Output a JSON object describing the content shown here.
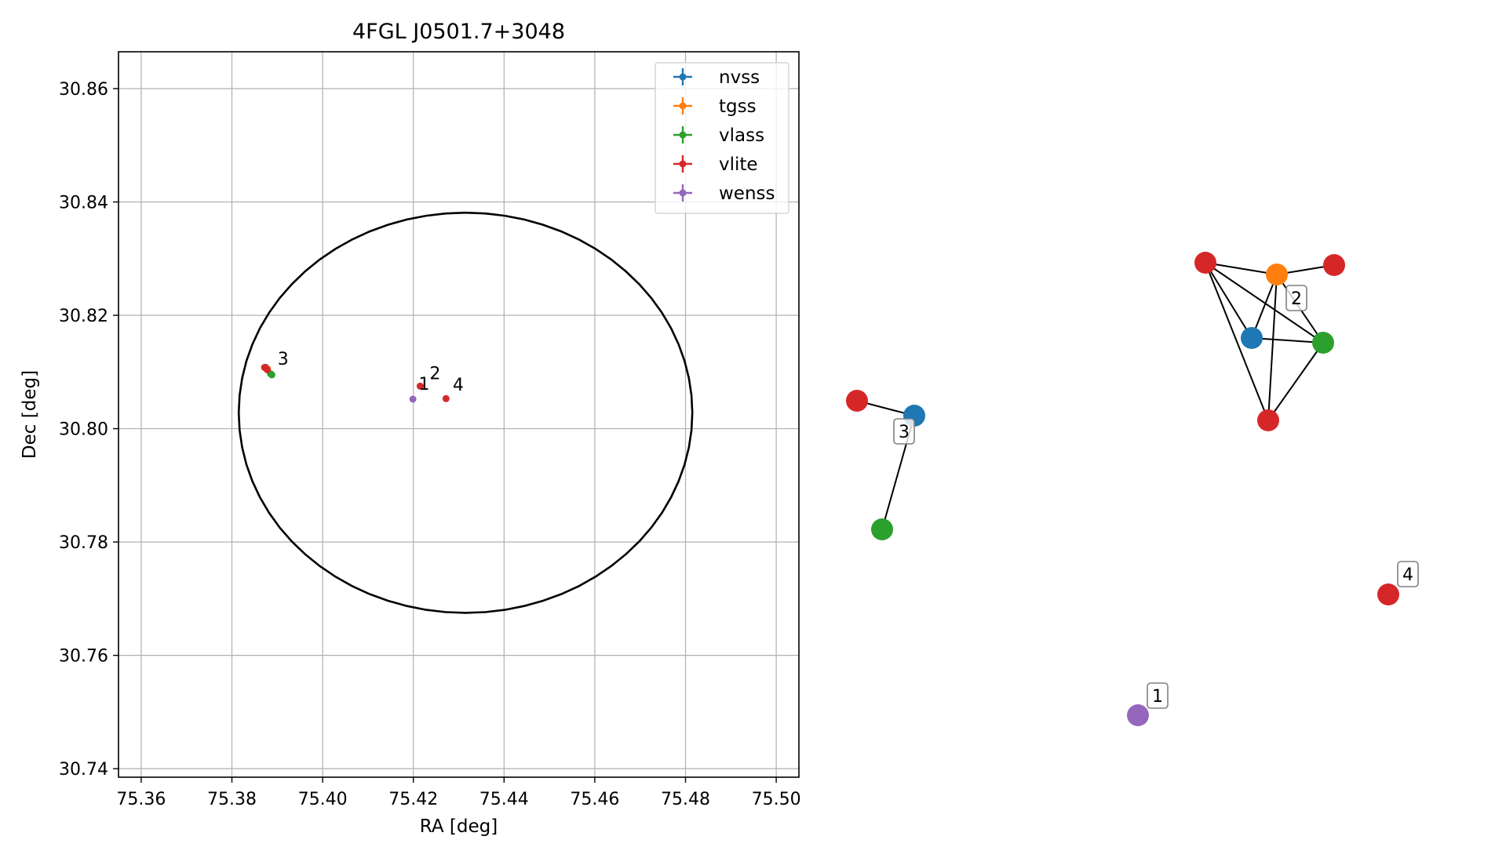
{
  "chart_data": [
    {
      "type": "scatter",
      "title": "4FGL J0501.7+3048",
      "xlabel": "RA [deg]",
      "ylabel": "Dec [deg]",
      "xlim": [
        75.355,
        75.505
      ],
      "ylim": [
        30.7385,
        30.8665
      ],
      "xticks": [
        75.36,
        75.38,
        75.4,
        75.42,
        75.44,
        75.46,
        75.48,
        75.5
      ],
      "xtick_labels": [
        "75.36",
        "75.38",
        "75.40",
        "75.42",
        "75.44",
        "75.46",
        "75.48",
        "75.50"
      ],
      "yticks": [
        30.74,
        30.76,
        30.78,
        30.8,
        30.82,
        30.84,
        30.86
      ],
      "ytick_labels": [
        "30.74",
        "30.76",
        "30.78",
        "30.80",
        "30.82",
        "30.84",
        "30.86"
      ],
      "grid": true,
      "legend_position": "top-right",
      "series": [
        {
          "name": "nvss",
          "color": "#1f77b4",
          "points": [
            {
              "x": 75.3875,
              "y": 30.8108
            }
          ]
        },
        {
          "name": "tgss",
          "color": "#ff7f0e",
          "points": [
            {
              "x": 75.3878,
              "y": 30.8106
            }
          ]
        },
        {
          "name": "vlass",
          "color": "#2ca02c",
          "points": [
            {
              "x": 75.3885,
              "y": 30.8097
            },
            {
              "x": 75.3888,
              "y": 30.8095
            }
          ]
        },
        {
          "name": "vlite",
          "color": "#d62728",
          "points": [
            {
              "x": 75.3872,
              "y": 30.8108
            },
            {
              "x": 75.3878,
              "y": 30.8104
            },
            {
              "x": 75.4215,
              "y": 30.8075
            },
            {
              "x": 75.4272,
              "y": 30.8053
            }
          ]
        },
        {
          "name": "wenss",
          "color": "#9467bd",
          "points": [
            {
              "x": 75.4199,
              "y": 30.8052
            }
          ]
        }
      ],
      "ellipse": {
        "center": [
          75.4315,
          30.8028
        ],
        "radius_x": 0.05,
        "radius_y": 0.0353,
        "color": "#000000"
      },
      "annotations": [
        {
          "text": "3",
          "x": 75.3887,
          "y": 30.8107
        },
        {
          "text": "2",
          "x": 75.4222,
          "y": 30.8082
        },
        {
          "text": "1",
          "x": 75.4198,
          "y": 30.8063
        },
        {
          "text": "4",
          "x": 75.4273,
          "y": 30.8062
        }
      ]
    },
    {
      "type": "network-graph",
      "nodes": [
        {
          "id": "c3_vlite",
          "survey": "vlite",
          "color": "#d62728"
        },
        {
          "id": "c3_nvss",
          "survey": "nvss",
          "color": "#1f77b4"
        },
        {
          "id": "c3_vlass",
          "survey": "vlass",
          "color": "#2ca02c"
        },
        {
          "id": "c2_vlite_a",
          "survey": "vlite",
          "color": "#d62728"
        },
        {
          "id": "c2_tgss",
          "survey": "tgss",
          "color": "#ff7f0e"
        },
        {
          "id": "c2_vlite_b",
          "survey": "vlite",
          "color": "#d62728"
        },
        {
          "id": "c2_nvss",
          "survey": "nvss",
          "color": "#1f77b4"
        },
        {
          "id": "c2_vlass",
          "survey": "vlass",
          "color": "#2ca02c"
        },
        {
          "id": "c2_vlite_c",
          "survey": "vlite",
          "color": "#d62728"
        },
        {
          "id": "c4_vlite",
          "survey": "vlite",
          "color": "#d62728"
        },
        {
          "id": "c1_wenss",
          "survey": "wenss",
          "color": "#9467bd"
        }
      ],
      "edges": [
        [
          "c3_vlite",
          "c3_nvss"
        ],
        [
          "c3_nvss",
          "c3_vlass"
        ],
        [
          "c2_vlite_a",
          "c2_tgss"
        ],
        [
          "c2_vlite_a",
          "c2_nvss"
        ],
        [
          "c2_vlite_a",
          "c2_vlass"
        ],
        [
          "c2_vlite_a",
          "c2_vlite_c"
        ],
        [
          "c2_tgss",
          "c2_vlite_b"
        ],
        [
          "c2_tgss",
          "c2_nvss"
        ],
        [
          "c2_tgss",
          "c2_vlass"
        ],
        [
          "c2_tgss",
          "c2_vlite_c"
        ],
        [
          "c2_nvss",
          "c2_vlass"
        ],
        [
          "c2_vlass",
          "c2_vlite_c"
        ]
      ],
      "labels": [
        {
          "text": "3",
          "node": "c3_nvss"
        },
        {
          "text": "2",
          "node": "c2_tgss"
        },
        {
          "text": "4",
          "node": "c4_vlite"
        },
        {
          "text": "1",
          "node": "c1_wenss"
        }
      ]
    }
  ]
}
